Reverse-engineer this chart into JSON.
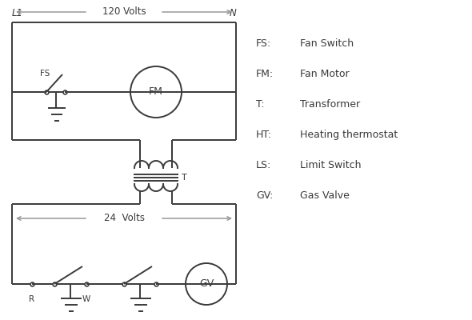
{
  "bg_color": "#ffffff",
  "line_color": "#3a3a3a",
  "arrow_color": "#999999",
  "legend": [
    [
      "FS:",
      "Fan Switch"
    ],
    [
      "FM:",
      "Fan Motor"
    ],
    [
      "T:",
      "Transformer"
    ],
    [
      "HT:",
      "Heating thermostat"
    ],
    [
      "LS:",
      "Limit Switch"
    ],
    [
      "GV:",
      "Gas Valve"
    ]
  ],
  "font_family": "DejaVu Sans",
  "lw": 1.4
}
